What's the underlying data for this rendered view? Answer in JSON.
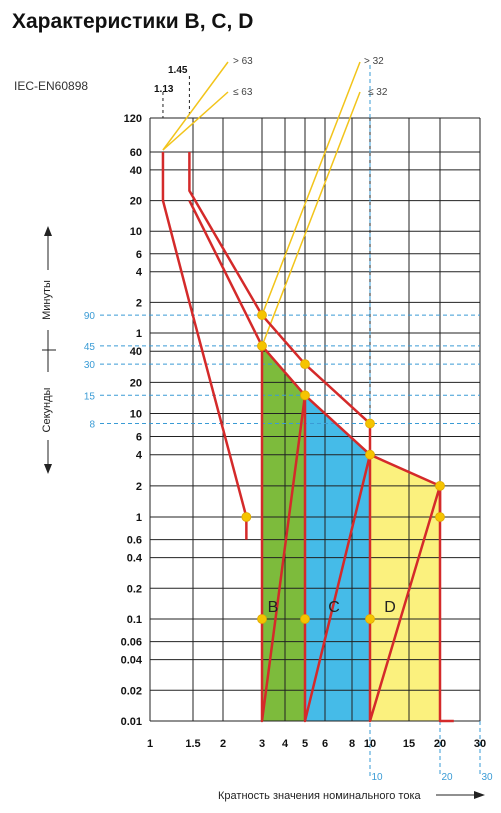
{
  "chart_data": {
    "type": "line",
    "title": "Характеристики B, C, D",
    "standard": "IEC-EN60898",
    "xlabel": "Кратность значения номинального тока",
    "ylabel_minutes": "Минуты",
    "ylabel_seconds": "Секунды",
    "x_scale": "log",
    "xlim": [
      1,
      30
    ],
    "x_ticks": [
      "1",
      "1.5",
      "2",
      "3",
      "4",
      "5",
      "6",
      "8",
      "10",
      "15",
      "20",
      "30"
    ],
    "x_ticks_values": [
      1,
      1.5,
      2,
      3,
      4,
      5,
      6,
      8,
      10,
      15,
      20,
      30
    ],
    "x_ticks_secondary": [
      "10",
      "20",
      "30"
    ],
    "y_ticks_minutes": [
      "120",
      "60",
      "40",
      "20",
      "10",
      "6",
      "4",
      "2",
      "1"
    ],
    "y_ticks_seconds": [
      "40",
      "20",
      "10",
      "6",
      "4",
      "2",
      "1",
      "0.6",
      "0.4",
      "0.2",
      "0.1",
      "0.06",
      "0.04",
      "0.02",
      "0.01"
    ],
    "y_ticks_dashed": [
      "90",
      "45",
      "30",
      "15",
      "8"
    ],
    "limit_labels": [
      "1.13",
      "1.45"
    ],
    "threshold_labels": [
      "> 63",
      "≤ 63",
      "> 32",
      "≤ 32"
    ],
    "curve_labels": [
      "B",
      "C",
      "D"
    ],
    "colors": {
      "curve": "#d42a2a",
      "zone_b": "#7dbb3c",
      "zone_c": "#45bbe8",
      "zone_d": "#fbf17e",
      "threshold_line": "#f2c41a",
      "marker": "#f5c400",
      "dashed_grid": "#3a9bd5"
    },
    "series": [
      {
        "x": [
          1.13,
          1.13,
          1.45,
          2.55,
          2.55
        ],
        "y": [
          3600,
          1200,
          120,
          1.0,
          0.6
        ]
      },
      {
        "x": [
          1.45,
          1.45,
          3,
          5,
          10,
          10,
          20,
          20
        ],
        "y": [
          3600,
          1500,
          90,
          30,
          8,
          4,
          2,
          0.9
        ]
      },
      {
        "x": [
          1.45,
          3,
          5,
          10
        ],
        "y": [
          1200,
          45,
          15,
          4
        ]
      },
      {
        "x": [
          3,
          3,
          5,
          5,
          10,
          10,
          20,
          20,
          23
        ],
        "y": [
          45,
          0.01,
          15,
          0.01,
          4,
          0.01,
          2,
          0.01,
          0.01
        ]
      }
    ],
    "markers": [
      {
        "x": 3,
        "y": 90
      },
      {
        "x": 3,
        "y": 45
      },
      {
        "x": 5,
        "y": 30
      },
      {
        "x": 5,
        "y": 15
      },
      {
        "x": 10,
        "y": 8
      },
      {
        "x": 10,
        "y": 4
      },
      {
        "x": 20,
        "y": 2
      },
      {
        "x": 20,
        "y": 1
      },
      {
        "x": 2.55,
        "y": 1
      },
      {
        "x": 3,
        "y": 0.1
      },
      {
        "x": 5,
        "y": 0.1
      },
      {
        "x": 10,
        "y": 0.1
      }
    ]
  }
}
